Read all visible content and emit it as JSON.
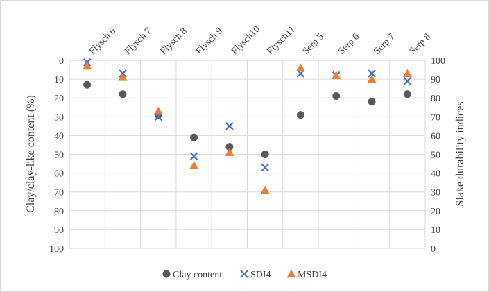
{
  "chart_data": {
    "type": "scatter",
    "categories": [
      "Flysch 6",
      "Flysch 7",
      "Flysch 8",
      "Flysch 9",
      "Flysch10",
      "Flysch11",
      "Serp 5",
      "Serp 6",
      "Serp 7",
      "Serp 8"
    ],
    "left_axis": {
      "label": "Clay/clay-like content (%)",
      "ticks": [
        "0",
        "10",
        "20",
        "30",
        "40",
        "50",
        "60",
        "70",
        "80",
        "90",
        "100"
      ],
      "range": [
        0,
        100
      ],
      "reversed": true
    },
    "right_axis": {
      "label": "Slake durability indices",
      "ticks": [
        "100",
        "90",
        "80",
        "70",
        "60",
        "50",
        "40",
        "30",
        "20",
        "10",
        "0"
      ],
      "range": [
        0,
        100
      ]
    },
    "series": [
      {
        "name": "Clay content",
        "axis": "left",
        "marker": "circle",
        "color": "#595959",
        "values": [
          13,
          18,
          29,
          41,
          46,
          50,
          29,
          19,
          22,
          18
        ]
      },
      {
        "name": "SDI4",
        "axis": "right",
        "marker": "x",
        "color": "#4472C4",
        "values": [
          99,
          93,
          70,
          49,
          65,
          43,
          93,
          92,
          93,
          89
        ]
      },
      {
        "name": "MSDI4",
        "axis": "right",
        "marker": "triangle",
        "color": "#ED7D31",
        "values": [
          97,
          91,
          73,
          44,
          51,
          31,
          96,
          92,
          90,
          93
        ]
      }
    ],
    "grid": true,
    "legend_position": "bottom"
  }
}
